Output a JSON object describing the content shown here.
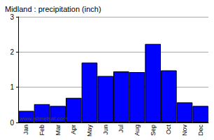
{
  "chart_data": {
    "type": "bar",
    "title": "Midland : precipitation (inch)",
    "categories": [
      "Jan",
      "Feb",
      "Mar",
      "Apr",
      "May",
      "Jun",
      "Jul",
      "Aug",
      "Sep",
      "Oct",
      "Nov",
      "Dec"
    ],
    "values": [
      0.33,
      0.52,
      0.47,
      0.7,
      1.7,
      1.32,
      1.45,
      1.43,
      2.23,
      1.48,
      0.57,
      0.47
    ],
    "color": "#0000ff",
    "ylim": [
      0,
      3
    ],
    "yticks": [
      0,
      1,
      2,
      3
    ],
    "grid": true,
    "annotations": [
      "www.allmetsat.com"
    ]
  }
}
